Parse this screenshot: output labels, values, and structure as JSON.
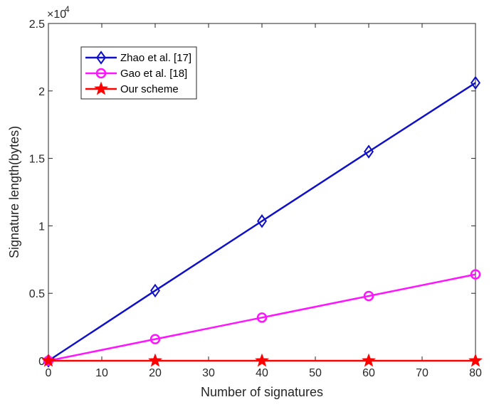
{
  "chart_data": {
    "type": "line",
    "xlabel": "Number of signatures",
    "ylabel": "Signature length(bytes)",
    "y_exponent_label": "×10",
    "y_exponent_power": "4",
    "xlim": [
      0,
      80
    ],
    "ylim": [
      0,
      2.5
    ],
    "xticks": [
      0,
      10,
      20,
      30,
      40,
      50,
      60,
      70,
      80
    ],
    "yticks": [
      0,
      0.5,
      1,
      1.5,
      2,
      2.5
    ],
    "ytick_labels": [
      "0",
      "0.5",
      "1",
      "1.5",
      "2",
      "2.5"
    ],
    "xtick_labels": [
      "0",
      "10",
      "20",
      "30",
      "40",
      "50",
      "60",
      "70",
      "80"
    ],
    "grid": false,
    "legend_position": "top-left",
    "series": [
      {
        "name": "Zhao et al. [17]",
        "color": "#1010c8",
        "marker": "diamond",
        "x": [
          0,
          20,
          40,
          60,
          80
        ],
        "y": [
          0,
          0.52,
          1.035,
          1.55,
          2.06
        ]
      },
      {
        "name": "Gao et al. [18]",
        "color": "#ff14ff",
        "marker": "circle",
        "x": [
          0,
          20,
          40,
          60,
          80
        ],
        "y": [
          0,
          0.16,
          0.32,
          0.48,
          0.64
        ]
      },
      {
        "name": "Our scheme",
        "color": "#ff0000",
        "marker": "star",
        "x": [
          0,
          20,
          40,
          60,
          80
        ],
        "y": [
          0,
          0,
          0,
          0,
          0
        ]
      }
    ]
  }
}
